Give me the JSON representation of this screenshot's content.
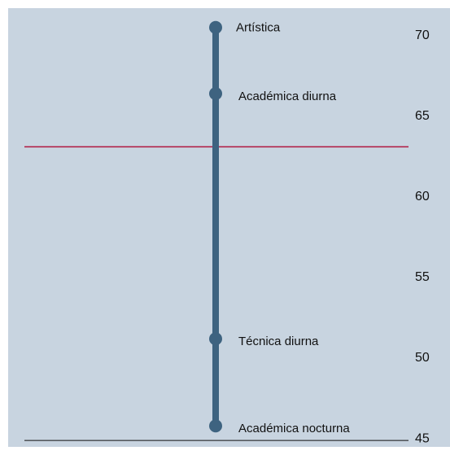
{
  "chart_data": {
    "type": "dot",
    "categories": [
      "Artística",
      "Académica diurna",
      "Técnica diurna",
      "Académica nocturna"
    ],
    "values": [
      70.5,
      66.4,
      51.2,
      45.8
    ],
    "color": "#3e6380",
    "ylim": [
      44.5,
      71.7
    ],
    "yticks": [
      45,
      50,
      55,
      60,
      65,
      70
    ],
    "reference_line": {
      "value": 63.1,
      "color": "#b0163f"
    },
    "background": "#c8d4e0"
  }
}
